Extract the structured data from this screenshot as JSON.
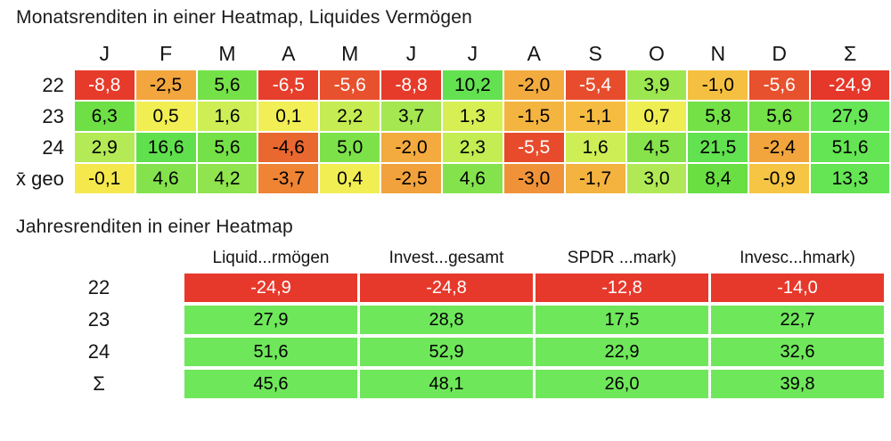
{
  "monthly": {
    "title": "Monatsrenditen in einer Heatmap, Liquides Vermögen",
    "columns": [
      "J",
      "F",
      "M",
      "A",
      "M",
      "J",
      "J",
      "A",
      "S",
      "O",
      "N",
      "D",
      "Σ"
    ],
    "rows": [
      {
        "label": "22",
        "cells": [
          {
            "v": "-8,8",
            "bg": "#e63b2b",
            "fg": "#ffffff"
          },
          {
            "v": "-2,5",
            "bg": "#f2a63d",
            "fg": "#000000"
          },
          {
            "v": "5,6",
            "bg": "#75e148",
            "fg": "#000000"
          },
          {
            "v": "-6,5",
            "bg": "#e63f2b",
            "fg": "#ffffff"
          },
          {
            "v": "-5,6",
            "bg": "#e8512d",
            "fg": "#ffffff"
          },
          {
            "v": "-8,8",
            "bg": "#e63b2b",
            "fg": "#ffffff"
          },
          {
            "v": "10,2",
            "bg": "#63e150",
            "fg": "#000000"
          },
          {
            "v": "-2,0",
            "bg": "#f3aa3e",
            "fg": "#000000"
          },
          {
            "v": "-5,4",
            "bg": "#e74d2d",
            "fg": "#ffffff"
          },
          {
            "v": "3,9",
            "bg": "#9ce64f",
            "fg": "#000000"
          },
          {
            "v": "-1,0",
            "bg": "#f5c041",
            "fg": "#000000"
          },
          {
            "v": "-5,6",
            "bg": "#e8512d",
            "fg": "#ffffff"
          },
          {
            "v": "-24,9",
            "bg": "#e5372a",
            "fg": "#ffffff"
          }
        ]
      },
      {
        "label": "23",
        "cells": [
          {
            "v": "6,3",
            "bg": "#6ee046",
            "fg": "#000000"
          },
          {
            "v": "0,5",
            "bg": "#f1ee53",
            "fg": "#000000"
          },
          {
            "v": "1,6",
            "bg": "#cdee55",
            "fg": "#000000"
          },
          {
            "v": "0,1",
            "bg": "#f1ef55",
            "fg": "#000000"
          },
          {
            "v": "2,2",
            "bg": "#c6ec53",
            "fg": "#000000"
          },
          {
            "v": "3,7",
            "bg": "#a4e751",
            "fg": "#000000"
          },
          {
            "v": "1,3",
            "bg": "#d8ef54",
            "fg": "#000000"
          },
          {
            "v": "-1,5",
            "bg": "#f4b440",
            "fg": "#000000"
          },
          {
            "v": "-1,1",
            "bg": "#f5bc41",
            "fg": "#000000"
          },
          {
            "v": "0,7",
            "bg": "#eeee52",
            "fg": "#000000"
          },
          {
            "v": "5,8",
            "bg": "#73e147",
            "fg": "#000000"
          },
          {
            "v": "5,6",
            "bg": "#75e148",
            "fg": "#000000"
          },
          {
            "v": "27,9",
            "bg": "#67e657",
            "fg": "#000000"
          }
        ]
      },
      {
        "label": "24",
        "cells": [
          {
            "v": "2,9",
            "bg": "#b3ea56",
            "fg": "#000000"
          },
          {
            "v": "16,6",
            "bg": "#60e04d",
            "fg": "#000000"
          },
          {
            "v": "5,6",
            "bg": "#75e148",
            "fg": "#000000"
          },
          {
            "v": "-4,6",
            "bg": "#e8682f",
            "fg": "#000000"
          },
          {
            "v": "5,0",
            "bg": "#7de24a",
            "fg": "#000000"
          },
          {
            "v": "-2,0",
            "bg": "#f3aa3e",
            "fg": "#000000"
          },
          {
            "v": "2,3",
            "bg": "#c4ec53",
            "fg": "#000000"
          },
          {
            "v": "-5,5",
            "bg": "#e74b2c",
            "fg": "#ffffff"
          },
          {
            "v": "1,6",
            "bg": "#cdee55",
            "fg": "#000000"
          },
          {
            "v": "4,5",
            "bg": "#86e34c",
            "fg": "#000000"
          },
          {
            "v": "21,5",
            "bg": "#62e250",
            "fg": "#000000"
          },
          {
            "v": "-2,4",
            "bg": "#f2a53d",
            "fg": "#000000"
          },
          {
            "v": "51,6",
            "bg": "#64e553",
            "fg": "#000000"
          }
        ]
      },
      {
        "label": "x̄ geo",
        "cells": [
          {
            "v": "-0,1",
            "bg": "#f4e84d",
            "fg": "#000000"
          },
          {
            "v": "4,6",
            "bg": "#84e34c",
            "fg": "#000000"
          },
          {
            "v": "4,2",
            "bg": "#90e44e",
            "fg": "#000000"
          },
          {
            "v": "-3,7",
            "bg": "#ee8434",
            "fg": "#000000"
          },
          {
            "v": "0,4",
            "bg": "#f1ee53",
            "fg": "#000000"
          },
          {
            "v": "-2,5",
            "bg": "#f2a23c",
            "fg": "#000000"
          },
          {
            "v": "4,6",
            "bg": "#84e34c",
            "fg": "#000000"
          },
          {
            "v": "-3,0",
            "bg": "#f09338",
            "fg": "#000000"
          },
          {
            "v": "-1,7",
            "bg": "#f4b33f",
            "fg": "#000000"
          },
          {
            "v": "3,0",
            "bg": "#b0e955",
            "fg": "#000000"
          },
          {
            "v": "8,4",
            "bg": "#69df43",
            "fg": "#000000"
          },
          {
            "v": "-0,9",
            "bg": "#f5c543",
            "fg": "#000000"
          },
          {
            "v": "13,3",
            "bg": "#65e454",
            "fg": "#000000"
          }
        ]
      }
    ]
  },
  "yearly": {
    "title": "Jahresrenditen in einer Heatmap",
    "columns": [
      "Liquid...rmögen",
      "Invest...gesamt",
      "SPDR ...mark)",
      "Invesc...hmark)"
    ],
    "rows": [
      {
        "label": "22",
        "cells": [
          {
            "v": "-24,9",
            "bg": "#e6392b",
            "fg": "#ffffff"
          },
          {
            "v": "-24,8",
            "bg": "#e6392b",
            "fg": "#ffffff"
          },
          {
            "v": "-12,8",
            "bg": "#e6392b",
            "fg": "#ffffff"
          },
          {
            "v": "-14,0",
            "bg": "#e6392b",
            "fg": "#ffffff"
          }
        ]
      },
      {
        "label": "23",
        "cells": [
          {
            "v": "27,9",
            "bg": "#6fe75b",
            "fg": "#000000"
          },
          {
            "v": "28,8",
            "bg": "#6fe75b",
            "fg": "#000000"
          },
          {
            "v": "17,5",
            "bg": "#6fe75b",
            "fg": "#000000"
          },
          {
            "v": "22,7",
            "bg": "#6fe75b",
            "fg": "#000000"
          }
        ]
      },
      {
        "label": "24",
        "cells": [
          {
            "v": "51,6",
            "bg": "#6fe75b",
            "fg": "#000000"
          },
          {
            "v": "52,9",
            "bg": "#6fe75b",
            "fg": "#000000"
          },
          {
            "v": "22,9",
            "bg": "#6fe75b",
            "fg": "#000000"
          },
          {
            "v": "32,6",
            "bg": "#6fe75b",
            "fg": "#000000"
          }
        ]
      },
      {
        "label": "Σ",
        "cells": [
          {
            "v": "45,6",
            "bg": "#6fe75b",
            "fg": "#000000"
          },
          {
            "v": "48,1",
            "bg": "#6fe75b",
            "fg": "#000000"
          },
          {
            "v": "26,0",
            "bg": "#6fe75b",
            "fg": "#000000"
          },
          {
            "v": "39,8",
            "bg": "#6fe75b",
            "fg": "#000000"
          }
        ]
      }
    ]
  },
  "colors": {
    "negative_strong": "#e6392b",
    "negative_mid": "#f3aa3e",
    "neutral": "#f1ee53",
    "positive_mid": "#9ce64f",
    "positive_strong": "#64e553",
    "text_dark": "#000000",
    "text_light": "#ffffff"
  },
  "chart_data": [
    {
      "type": "heatmap",
      "title": "Monatsrenditen in einer Heatmap, Liquides Vermögen",
      "columns": [
        "J",
        "F",
        "M",
        "A",
        "M",
        "J",
        "J",
        "A",
        "S",
        "O",
        "N",
        "D",
        "Σ"
      ],
      "rows": [
        "22",
        "23",
        "24",
        "x̄ geo"
      ],
      "values": [
        [
          -8.8,
          -2.5,
          5.6,
          -6.5,
          -5.6,
          -8.8,
          10.2,
          -2.0,
          -5.4,
          3.9,
          -1.0,
          -5.6,
          -24.9
        ],
        [
          6.3,
          0.5,
          1.6,
          0.1,
          2.2,
          3.7,
          1.3,
          -1.5,
          -1.1,
          0.7,
          5.8,
          5.6,
          27.9
        ],
        [
          2.9,
          16.6,
          5.6,
          -4.6,
          5.0,
          -2.0,
          2.3,
          -5.5,
          1.6,
          4.5,
          21.5,
          -2.4,
          51.6
        ],
        [
          -0.1,
          4.6,
          4.2,
          -3.7,
          0.4,
          -2.5,
          4.6,
          -3.0,
          -1.7,
          3.0,
          8.4,
          -0.9,
          13.3
        ]
      ],
      "value_format": "german decimal comma, percent monthly return",
      "colorscale": "red (strong negative) → orange → yellow (≈0) → green (positive)"
    },
    {
      "type": "heatmap",
      "title": "Jahresrenditen in einer Heatmap",
      "columns": [
        "Liquid...rmögen",
        "Invest...gesamt",
        "SPDR ...mark)",
        "Invesc...hmark)"
      ],
      "rows": [
        "22",
        "23",
        "24",
        "Σ"
      ],
      "values": [
        [
          -24.9,
          -24.8,
          -12.8,
          -14.0
        ],
        [
          27.9,
          28.8,
          17.5,
          22.7
        ],
        [
          51.6,
          52.9,
          22.9,
          32.6
        ],
        [
          45.6,
          48.1,
          26.0,
          39.8
        ]
      ],
      "value_format": "german decimal comma, percent yearly return",
      "colorscale": "red (negative) / green (positive)"
    }
  ]
}
